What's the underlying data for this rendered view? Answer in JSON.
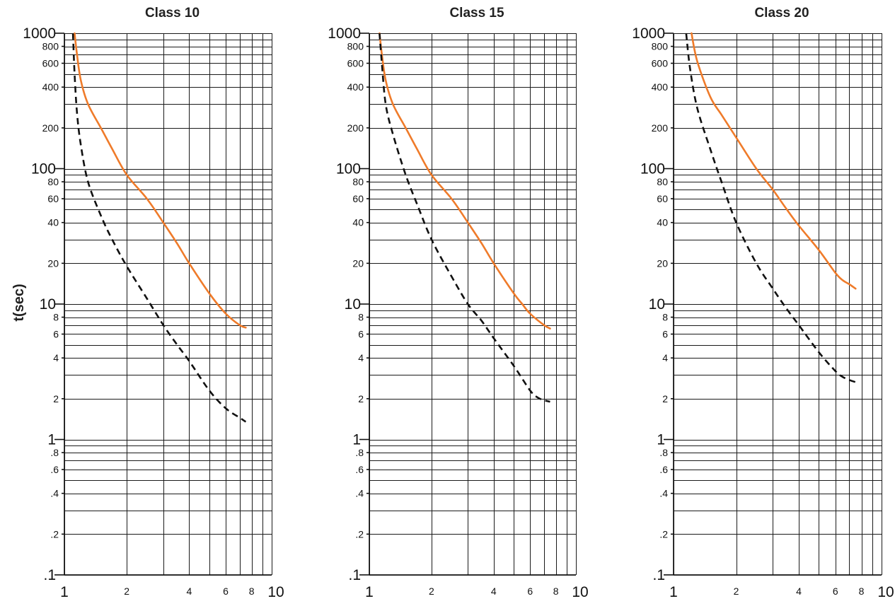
{
  "y_axis_label": "t(sec)",
  "chart_data": [
    {
      "type": "line",
      "title": "Class 10",
      "xlabel": "",
      "ylabel": "t(sec)",
      "xscale": "log",
      "yscale": "log",
      "xlim": [
        1,
        10
      ],
      "ylim": [
        0.1,
        1000
      ],
      "grid": true,
      "x_tick_labels": [
        "1",
        "2",
        "4",
        "6",
        "8",
        "10"
      ],
      "y_tick_labels": [
        "1000",
        "800",
        "600",
        "400",
        "200",
        "100",
        "80",
        "60",
        "40",
        "20",
        "10",
        "8",
        "6",
        "4",
        "2",
        "1",
        ".8",
        ".6",
        ".4",
        ".2",
        ".1"
      ],
      "series": [
        {
          "style": "solid",
          "color": "#ef7b2a",
          "x": [
            1.12,
            1.15,
            1.2,
            1.3,
            1.5,
            1.7,
            2.0,
            2.5,
            3.0,
            3.5,
            4.0,
            5.0,
            6.0,
            7.0,
            7.5
          ],
          "y": [
            1000,
            700,
            450,
            300,
            200,
            140,
            90,
            60,
            40,
            28,
            20,
            12,
            8.5,
            7.0,
            6.7
          ]
        },
        {
          "style": "dashed",
          "color": "#111111",
          "x": [
            1.1,
            1.12,
            1.15,
            1.2,
            1.3,
            1.5,
            1.7,
            2.0,
            2.5,
            3.0,
            3.5,
            4.0,
            5.0,
            6.0,
            7.0,
            7.5
          ],
          "y": [
            1000,
            500,
            260,
            150,
            80,
            45,
            30,
            19,
            11,
            7.0,
            5.0,
            3.8,
            2.3,
            1.7,
            1.45,
            1.35
          ]
        }
      ]
    },
    {
      "type": "line",
      "title": "Class 15",
      "xlabel": "",
      "ylabel": "",
      "xscale": "log",
      "yscale": "log",
      "xlim": [
        1,
        10
      ],
      "ylim": [
        0.1,
        1000
      ],
      "grid": true,
      "x_tick_labels": [
        "1",
        "2",
        "4",
        "6",
        "8",
        "10"
      ],
      "y_tick_labels": [
        "1000",
        "800",
        "600",
        "400",
        "200",
        "100",
        "80",
        "60",
        "40",
        "20",
        "10",
        "8",
        "6",
        "4",
        "2",
        "1",
        ".8",
        ".6",
        ".4",
        ".2",
        ".1"
      ],
      "series": [
        {
          "style": "solid",
          "color": "#ef7b2a",
          "x": [
            1.12,
            1.15,
            1.2,
            1.3,
            1.5,
            1.7,
            2.0,
            2.5,
            3.0,
            3.5,
            4.0,
            5.0,
            5.5,
            6.0,
            7.0,
            7.5
          ],
          "y": [
            1000,
            700,
            450,
            300,
            200,
            140,
            90,
            60,
            40,
            28,
            20,
            12,
            10,
            8.5,
            7.0,
            6.6
          ]
        },
        {
          "style": "dashed",
          "color": "#111111",
          "x": [
            1.12,
            1.15,
            1.2,
            1.3,
            1.5,
            1.7,
            2.0,
            2.5,
            3.0,
            3.5,
            4.0,
            5.0,
            6.0,
            6.5,
            7.0,
            7.5
          ],
          "y": [
            1000,
            600,
            300,
            180,
            90,
            55,
            30,
            16,
            10,
            7.5,
            5.6,
            3.5,
            2.3,
            2.05,
            1.95,
            1.9
          ]
        }
      ]
    },
    {
      "type": "line",
      "title": "Class 20",
      "xlabel": "",
      "ylabel": "",
      "xscale": "log",
      "yscale": "log",
      "xlim": [
        1,
        10
      ],
      "ylim": [
        0.1,
        1000
      ],
      "grid": true,
      "x_tick_labels": [
        "1",
        "2",
        "4",
        "6",
        "8",
        "10"
      ],
      "y_tick_labels": [
        "1000",
        "800",
        "600",
        "400",
        "200",
        "100",
        "80",
        "60",
        "40",
        "20",
        "10",
        "8",
        "6",
        "4",
        "2",
        "1",
        ".8",
        ".6",
        ".4",
        ".2",
        ".1"
      ],
      "series": [
        {
          "style": "solid",
          "color": "#ef7b2a",
          "x": [
            1.22,
            1.3,
            1.5,
            1.7,
            2.0,
            2.5,
            3.0,
            3.5,
            4.0,
            5.0,
            6.0,
            6.5,
            7.0,
            7.5
          ],
          "y": [
            1000,
            620,
            340,
            250,
            170,
            100,
            70,
            50,
            38,
            25,
            17,
            15,
            14,
            13
          ]
        },
        {
          "style": "dashed",
          "color": "#111111",
          "x": [
            1.15,
            1.2,
            1.3,
            1.5,
            1.7,
            2.0,
            2.5,
            3.0,
            3.5,
            4.0,
            5.0,
            6.0,
            6.5,
            7.0,
            7.5
          ],
          "y": [
            1000,
            550,
            280,
            140,
            80,
            40,
            20,
            13,
            9.2,
            7.0,
            4.4,
            3.2,
            2.9,
            2.75,
            2.65
          ]
        }
      ]
    }
  ]
}
